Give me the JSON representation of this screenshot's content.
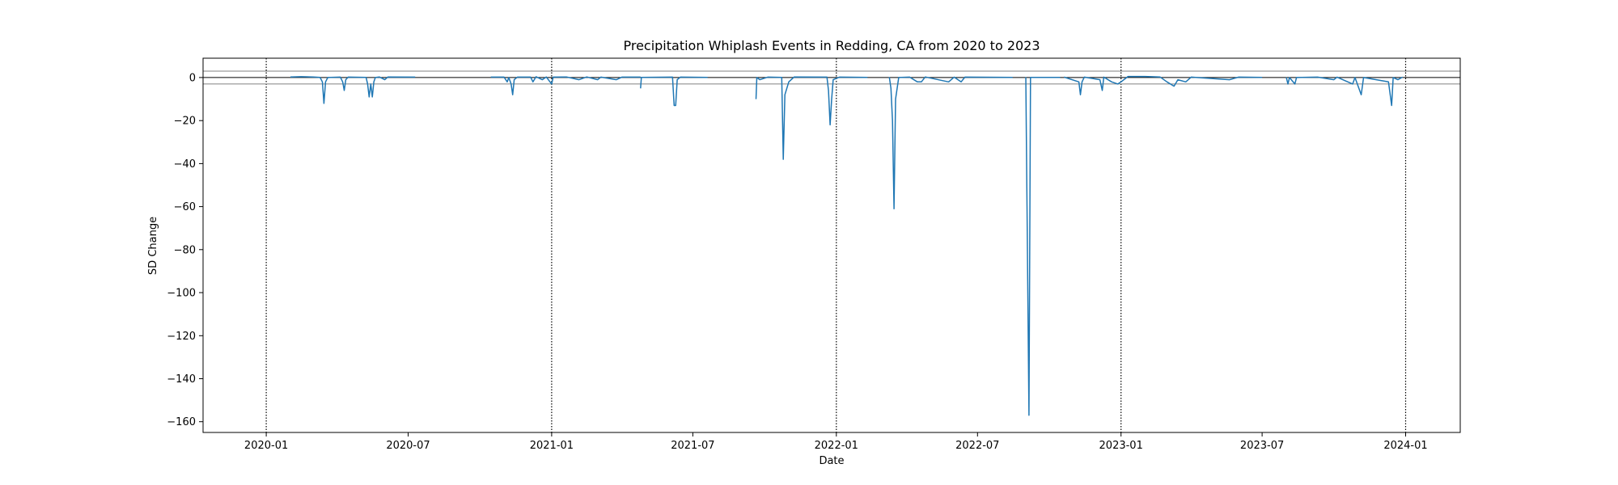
{
  "chart_data": {
    "type": "line",
    "title": "Precipitation Whiplash Events in Redding, CA from 2020 to 2023",
    "xlabel": "Date",
    "ylabel": "SD Change",
    "xlim": [
      "2019-10-12",
      "2024-03-11"
    ],
    "ylim": [
      -165,
      9
    ],
    "x_ticks": [
      "2020-01",
      "2020-07",
      "2021-01",
      "2021-07",
      "2022-01",
      "2022-07",
      "2023-01",
      "2023-07",
      "2024-01"
    ],
    "y_ticks": [
      0,
      -20,
      -40,
      -60,
      -80,
      -100,
      -120,
      -140,
      -160
    ],
    "y_tick_labels": [
      "0",
      "−20",
      "−40",
      "−60",
      "−80",
      "−100",
      "−120",
      "−140",
      "−160"
    ],
    "hlines": [
      {
        "y": 3,
        "color": "#808080"
      },
      {
        "y": 0,
        "color": "#000000"
      },
      {
        "y": -3,
        "color": "#808080"
      }
    ],
    "vlines": [
      "2020-01-01",
      "2021-01-01",
      "2022-01-01",
      "2023-01-01",
      "2024-01-01"
    ],
    "grid": false,
    "colors": {
      "line": "#1f77b4",
      "axes": "#000000"
    },
    "series": [
      {
        "name": "",
        "segments": [
          [
            [
              "2020-02-01",
              0.3
            ],
            [
              "2020-02-15",
              0.4
            ],
            [
              "2020-03-01",
              0.3
            ],
            [
              "2020-03-10",
              0.1
            ],
            [
              "2020-03-13",
              -2
            ],
            [
              "2020-03-15",
              -12
            ],
            [
              "2020-03-17",
              -2
            ],
            [
              "2020-03-20",
              0
            ],
            [
              "2020-04-05",
              0.2
            ],
            [
              "2020-04-08",
              -2
            ],
            [
              "2020-04-10",
              -6
            ],
            [
              "2020-04-12",
              -1
            ],
            [
              "2020-04-15",
              0.2
            ],
            [
              "2020-05-08",
              0.1
            ],
            [
              "2020-05-10",
              -3
            ],
            [
              "2020-05-12",
              -9
            ],
            [
              "2020-05-14",
              -3
            ],
            [
              "2020-05-16",
              -9
            ],
            [
              "2020-05-18",
              -2
            ],
            [
              "2020-05-20",
              0
            ],
            [
              "2020-05-25",
              0.3
            ],
            [
              "2020-06-01",
              -1
            ],
            [
              "2020-06-05",
              0.3
            ],
            [
              "2020-07-10",
              0.2
            ]
          ],
          [
            [
              "2020-10-15",
              0.2
            ],
            [
              "2020-11-01",
              0.2
            ],
            [
              "2020-11-05",
              -2
            ],
            [
              "2020-11-07",
              0
            ],
            [
              "2020-11-10",
              -3
            ],
            [
              "2020-11-12",
              -8
            ],
            [
              "2020-11-14",
              -1
            ],
            [
              "2020-11-18",
              0.2
            ],
            [
              "2020-12-05",
              0.2
            ],
            [
              "2020-12-08",
              -2
            ],
            [
              "2020-12-12",
              0.4
            ],
            [
              "2020-12-20",
              -1
            ],
            [
              "2020-12-25",
              0.3
            ],
            [
              "2021-01-01",
              -3
            ],
            [
              "2021-01-03",
              0.2
            ],
            [
              "2021-01-20",
              0.3
            ],
            [
              "2021-02-05",
              -1
            ],
            [
              "2021-02-15",
              0.3
            ],
            [
              "2021-03-01",
              -1
            ],
            [
              "2021-03-05",
              0.2
            ],
            [
              "2021-03-25",
              -1
            ],
            [
              "2021-04-01",
              0.2
            ],
            [
              "2021-04-25",
              0.2
            ]
          ],
          [
            [
              "2021-04-25",
              -5
            ],
            [
              "2021-04-26",
              0.1
            ],
            [
              "2021-06-05",
              0.2
            ],
            [
              "2021-06-07",
              -13
            ],
            [
              "2021-06-09",
              -13
            ],
            [
              "2021-06-11",
              -1
            ],
            [
              "2021-06-15",
              0.2
            ],
            [
              "2021-07-20",
              0.1
            ]
          ],
          [
            [
              "2021-09-20",
              -10
            ],
            [
              "2021-09-21",
              0
            ],
            [
              "2021-09-25",
              -1
            ],
            [
              "2021-10-05",
              0.2
            ],
            [
              "2021-10-23",
              0.1
            ],
            [
              "2021-10-25",
              -38
            ],
            [
              "2021-10-27",
              -8
            ],
            [
              "2021-11-01",
              -2
            ],
            [
              "2021-11-08",
              0.3
            ],
            [
              "2021-12-20",
              0.2
            ],
            [
              "2021-12-22",
              -6
            ],
            [
              "2021-12-24",
              -22
            ],
            [
              "2021-12-26",
              -10
            ],
            [
              "2021-12-28",
              -1
            ],
            [
              "2022-01-05",
              0.2
            ],
            [
              "2022-02-10",
              0.1
            ]
          ],
          [
            [
              "2022-03-10",
              0.2
            ],
            [
              "2022-03-12",
              -5
            ],
            [
              "2022-03-14",
              -20
            ],
            [
              "2022-03-16",
              -61
            ],
            [
              "2022-03-18",
              -10
            ],
            [
              "2022-03-22",
              0
            ],
            [
              "2022-04-05",
              0.2
            ],
            [
              "2022-04-15",
              -2
            ],
            [
              "2022-04-20",
              -2
            ],
            [
              "2022-04-25",
              0.3
            ],
            [
              "2022-05-25",
              -2
            ],
            [
              "2022-06-01",
              0.2
            ],
            [
              "2022-06-10",
              -2
            ],
            [
              "2022-06-15",
              0.2
            ],
            [
              "2022-08-15",
              0.1
            ]
          ],
          [
            [
              "2022-09-01",
              0.2
            ],
            [
              "2022-09-05",
              -157
            ],
            [
              "2022-09-07",
              0.1
            ],
            [
              "2022-10-15",
              0.1
            ]
          ],
          [
            [
              "2022-10-20",
              0.2
            ],
            [
              "2022-11-08",
              -2
            ],
            [
              "2022-11-10",
              -8
            ],
            [
              "2022-11-12",
              -2
            ],
            [
              "2022-11-15",
              0.2
            ],
            [
              "2022-12-05",
              -1
            ],
            [
              "2022-12-08",
              -6
            ],
            [
              "2022-12-10",
              0.2
            ],
            [
              "2022-12-20",
              -2
            ],
            [
              "2022-12-28",
              -3
            ],
            [
              "2023-01-01",
              -2
            ],
            [
              "2023-01-10",
              0.5
            ],
            [
              "2023-02-01",
              0.5
            ],
            [
              "2023-02-20",
              0.3
            ],
            [
              "2023-03-01",
              -2
            ],
            [
              "2023-03-10",
              -4
            ],
            [
              "2023-03-15",
              -1
            ],
            [
              "2023-03-25",
              -2
            ],
            [
              "2023-04-01",
              0.2
            ],
            [
              "2023-05-20",
              -1
            ],
            [
              "2023-06-01",
              0.2
            ],
            [
              "2023-07-01",
              0.1
            ]
          ],
          [
            [
              "2023-08-01",
              0.1
            ],
            [
              "2023-08-03",
              -3
            ],
            [
              "2023-08-05",
              0
            ],
            [
              "2023-08-12",
              -3
            ],
            [
              "2023-08-14",
              0
            ],
            [
              "2023-09-10",
              0.2
            ],
            [
              "2023-10-01",
              -1
            ],
            [
              "2023-10-05",
              0.2
            ],
            [
              "2023-10-25",
              -3
            ],
            [
              "2023-10-28",
              0
            ],
            [
              "2023-11-05",
              -8
            ],
            [
              "2023-11-08",
              0
            ],
            [
              "2023-12-10",
              -2
            ],
            [
              "2023-12-14",
              -13
            ],
            [
              "2023-12-16",
              0
            ],
            [
              "2023-12-22",
              -1
            ],
            [
              "2023-12-28",
              0.2
            ]
          ]
        ]
      }
    ]
  }
}
